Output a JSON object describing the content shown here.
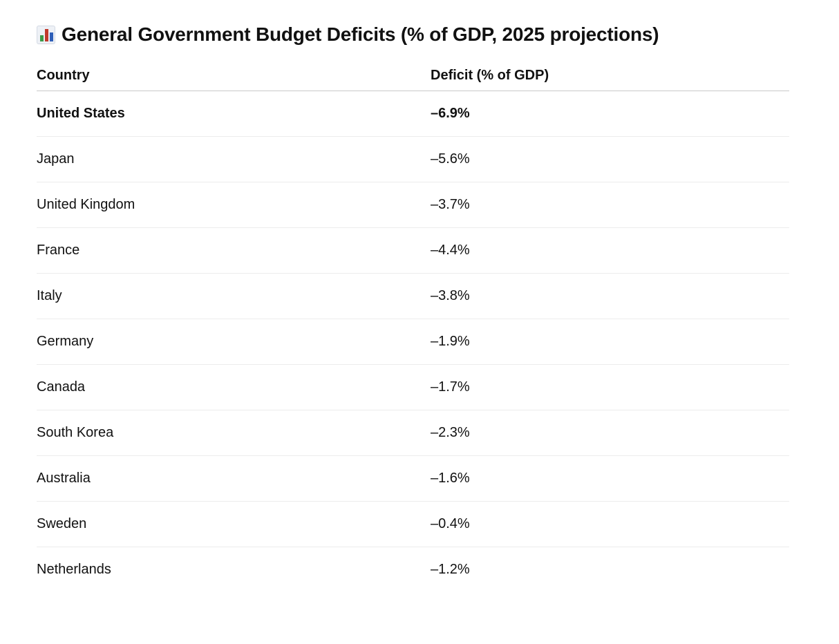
{
  "header": {
    "icon": "bar-chart-icon",
    "title": "General Government Budget Deficits (% of GDP, 2025 projections)"
  },
  "table": {
    "columns": [
      "Country",
      "Deficit (% of GDP)"
    ],
    "rows": [
      {
        "country": "United States",
        "deficit": "–6.9%",
        "emphasized": true
      },
      {
        "country": "Japan",
        "deficit": "–5.6%"
      },
      {
        "country": "United Kingdom",
        "deficit": "–3.7%"
      },
      {
        "country": "France",
        "deficit": "–4.4%"
      },
      {
        "country": "Italy",
        "deficit": "–3.8%"
      },
      {
        "country": "Germany",
        "deficit": "–1.9%"
      },
      {
        "country": "Canada",
        "deficit": "–1.7%"
      },
      {
        "country": "South Korea",
        "deficit": "–2.3%"
      },
      {
        "country": "Australia",
        "deficit": "–1.6%"
      },
      {
        "country": "Sweden",
        "deficit": "–0.4%"
      },
      {
        "country": "Netherlands",
        "deficit": "–1.2%"
      }
    ]
  }
}
